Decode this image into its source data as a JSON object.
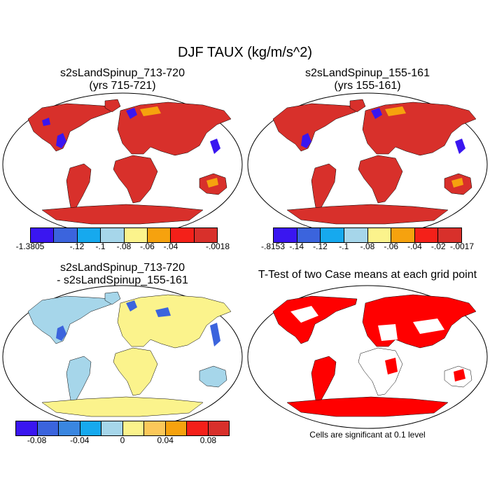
{
  "title": "DJF TAUX (kg/m/s^2)",
  "panels": [
    {
      "title_line1": "s2sLandSpinup_713-720",
      "title_line2": "(yrs 715-721)"
    },
    {
      "title_line1": "s2sLandSpinup_155-161",
      "title_line2": "(yrs 155-161)"
    },
    {
      "title_line1": "s2sLandSpinup_713-720",
      "title_line2": "- s2sLandSpinup_155-161"
    },
    {
      "title_line1": "T-Test of two Case means at each grid point",
      "title_line2": ""
    }
  ],
  "colorbars": [
    {
      "colors": [
        "#3a16f0",
        "#3b64dd",
        "#16a9ee",
        "#a6d6ea",
        "#fbf38c",
        "#f6a20e",
        "#f42019",
        "#d8302b"
      ],
      "labels": [
        "-1.3805",
        "-.12",
        "-.1",
        "-.08",
        "-.06",
        "-.04",
        "-.0018"
      ]
    },
    {
      "colors": [
        "#3a16f0",
        "#3b64dd",
        "#16a9ee",
        "#a6d6ea",
        "#fbf38c",
        "#f6a20e",
        "#f42019",
        "#d8302b"
      ],
      "labels": [
        "-.8153",
        "-.14",
        "-.12",
        "-.1",
        "-.08",
        "-.06",
        "-.04",
        "-.02",
        "-.0017"
      ]
    },
    {
      "colors": [
        "#3a16f0",
        "#3b64dd",
        "#3a86e0",
        "#16a9ee",
        "#a6d6ea",
        "#fbf38c",
        "#fbc85a",
        "#f6a20e",
        "#f42019",
        "#d8302b"
      ],
      "labels": [
        "-0.08",
        "-0.04",
        "0",
        "0.04",
        "0.08"
      ]
    }
  ],
  "note": "Cells are significant at 0.1 level"
}
